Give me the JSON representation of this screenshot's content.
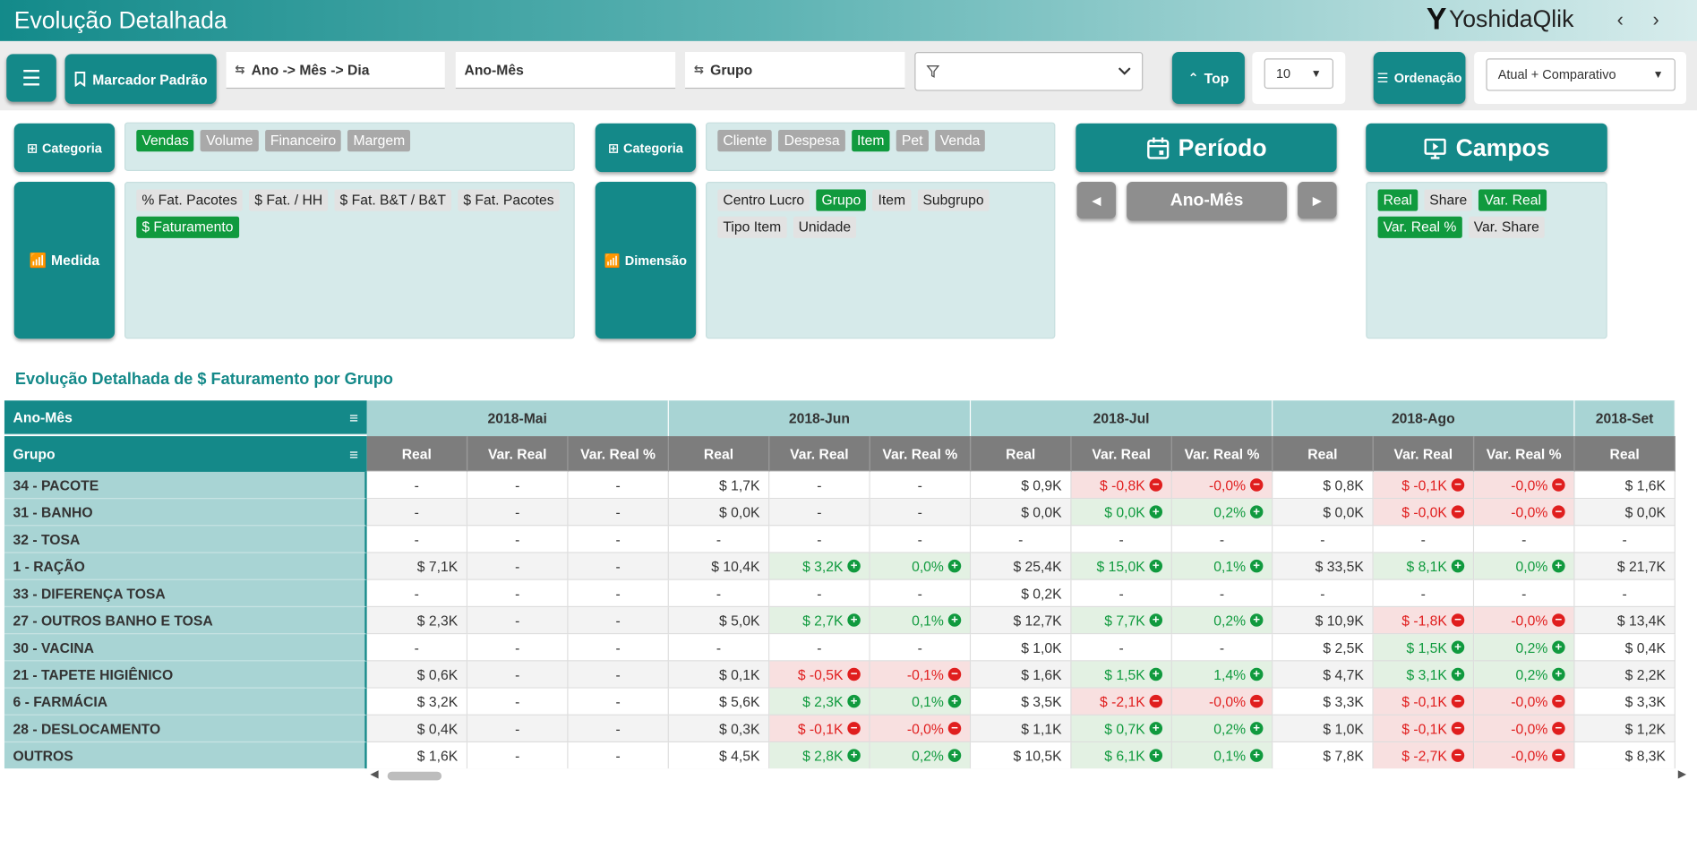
{
  "header": {
    "title": "Evolução Detalhada",
    "logo_text": "YoshidaQlik",
    "logo_letter": "Y",
    "prev_arrow": "‹",
    "next_arrow": "›"
  },
  "toolbar": {
    "menu_icon": "☰",
    "bookmark_label": "Marcador Padrão",
    "hierarchy_label": "Ano -> Mês -> Dia",
    "period_field": "Ano-Mês",
    "group_field": "Grupo",
    "filter_value": "",
    "top_label": "Top",
    "top_value": "10",
    "order_label": "Ordenação",
    "order_value": "Atual + Comparativo"
  },
  "filters": {
    "categoria_label": "Categoria",
    "medida_label": "Medida",
    "dimensao_label": "Dimensão",
    "periodo_label": "Período",
    "campos_label": "Campos",
    "period_value": "Ano-Mês",
    "categoria_left": [
      {
        "label": "Vendas",
        "state": "selected"
      },
      {
        "label": "Volume",
        "state": "excluded"
      },
      {
        "label": "Financeiro",
        "state": "excluded"
      },
      {
        "label": "Margem",
        "state": "excluded"
      }
    ],
    "medida": [
      {
        "label": "% Fat. Pacotes",
        "state": "possible"
      },
      {
        "label": "$ Fat. / HH",
        "state": "possible"
      },
      {
        "label": "$ Fat. B&T / B&T",
        "state": "possible"
      },
      {
        "label": "$ Fat. Pacotes",
        "state": "possible"
      },
      {
        "label": "$ Faturamento",
        "state": "selected"
      }
    ],
    "categoria_right": [
      {
        "label": "Cliente",
        "state": "excluded"
      },
      {
        "label": "Despesa",
        "state": "excluded"
      },
      {
        "label": "Item",
        "state": "selected"
      },
      {
        "label": "Pet",
        "state": "excluded"
      },
      {
        "label": "Venda",
        "state": "excluded"
      }
    ],
    "dimensao": [
      {
        "label": "Centro Lucro",
        "state": "possible"
      },
      {
        "label": "Grupo",
        "state": "selected"
      },
      {
        "label": "Item",
        "state": "possible"
      },
      {
        "label": "Subgrupo",
        "state": "possible"
      },
      {
        "label": "Tipo Item",
        "state": "possible"
      },
      {
        "label": "Unidade",
        "state": "possible"
      }
    ],
    "campos": [
      {
        "label": "Real",
        "state": "selected"
      },
      {
        "label": "Share",
        "state": "possible"
      },
      {
        "label": "Var. Real",
        "state": "selected"
      },
      {
        "label": "Var. Real %",
        "state": "selected"
      },
      {
        "label": "Var. Share",
        "state": "possible"
      }
    ]
  },
  "table": {
    "title": "Evolução Detalhada de $ Faturamento por Grupo",
    "dim_header_1": "Ano-Mês",
    "dim_header_2": "Grupo",
    "hamburger": "≡",
    "months": [
      "2018-Mai",
      "2018-Jun",
      "2018-Jul",
      "2018-Ago",
      "2018-Set"
    ],
    "measures": [
      "Real",
      "Var. Real",
      "Var. Real %"
    ],
    "rows": [
      {
        "group": "34 - PACOTE",
        "cells": [
          "-",
          "-",
          "-",
          "$ 1,7K",
          "-",
          "-",
          "$ 0,9K",
          "$ -0,8K",
          "-0,0%",
          "$ 0,8K",
          "$ -0,1K",
          "-0,0%",
          "$ 1,6K"
        ]
      },
      {
        "group": "31 - BANHO",
        "cells": [
          "-",
          "-",
          "-",
          "$ 0,0K",
          "-",
          "-",
          "$ 0,0K",
          "$ 0,0K",
          "0,2%",
          "$ 0,0K",
          "$ -0,0K",
          "-0,0%",
          "$ 0,0K"
        ]
      },
      {
        "group": "32 - TOSA",
        "cells": [
          "-",
          "-",
          "-",
          "-",
          "-",
          "-",
          "-",
          "-",
          "-",
          "-",
          "-",
          "-",
          "-"
        ]
      },
      {
        "group": "1 - RAÇÃO",
        "cells": [
          "$ 7,1K",
          "-",
          "-",
          "$ 10,4K",
          "$ 3,2K",
          "0,0%",
          "$ 25,4K",
          "$ 15,0K",
          "0,1%",
          "$ 33,5K",
          "$ 8,1K",
          "0,0%",
          "$ 21,7K"
        ]
      },
      {
        "group": "33 - DIFERENÇA TOSA",
        "cells": [
          "-",
          "-",
          "-",
          "-",
          "-",
          "-",
          "$ 0,2K",
          "-",
          "-",
          "-",
          "-",
          "-",
          "-"
        ]
      },
      {
        "group": "27 - OUTROS BANHO E TOSA",
        "cells": [
          "$ 2,3K",
          "-",
          "-",
          "$ 5,0K",
          "$ 2,7K",
          "0,1%",
          "$ 12,7K",
          "$ 7,7K",
          "0,2%",
          "$ 10,9K",
          "$ -1,8K",
          "-0,0%",
          "$ 13,4K"
        ]
      },
      {
        "group": "30 - VACINA",
        "cells": [
          "-",
          "-",
          "-",
          "-",
          "-",
          "-",
          "$ 1,0K",
          "-",
          "-",
          "$ 2,5K",
          "$ 1,5K",
          "0,2%",
          "$ 0,4K"
        ]
      },
      {
        "group": "21 - TAPETE HIGIÊNICO",
        "cells": [
          "$ 0,6K",
          "-",
          "-",
          "$ 0,1K",
          "$ -0,5K",
          "-0,1%",
          "$ 1,6K",
          "$ 1,5K",
          "1,4%",
          "$ 4,7K",
          "$ 3,1K",
          "0,2%",
          "$ 2,2K"
        ]
      },
      {
        "group": "6 - FARMÁCIA",
        "cells": [
          "$ 3,2K",
          "-",
          "-",
          "$ 5,6K",
          "$ 2,3K",
          "0,1%",
          "$ 3,5K",
          "$ -2,1K",
          "-0,0%",
          "$ 3,3K",
          "$ -0,1K",
          "-0,0%",
          "$ 3,3K"
        ]
      },
      {
        "group": "28 - DESLOCAMENTO",
        "cells": [
          "$ 0,4K",
          "-",
          "-",
          "$ 0,3K",
          "$ -0,1K",
          "-0,0%",
          "$ 1,1K",
          "$ 0,7K",
          "0,2%",
          "$ 1,0K",
          "$ -0,1K",
          "-0,0%",
          "$ 1,2K"
        ]
      },
      {
        "group": "OUTROS",
        "cells": [
          "$ 1,6K",
          "-",
          "-",
          "$ 4,5K",
          "$ 2,8K",
          "0,2%",
          "$ 10,5K",
          "$ 6,1K",
          "0,1%",
          "$ 7,8K",
          "$ -2,7K",
          "-0,0%",
          "$ 8,3K"
        ]
      }
    ]
  },
  "colors": {
    "teal": "#148989",
    "header_teal_light": "#a8d4d4",
    "positive_bg": "#e3f1e3",
    "positive_text": "#109a3e",
    "negative_bg": "#f8e0e0",
    "negative_text": "#e01e1e",
    "selected_chip": "#109a3e",
    "excluded_chip": "#a9a9a9"
  },
  "icons": {
    "menu": "hamburger-icon",
    "bookmark": "bookmark-icon",
    "hierarchy": "hierarchy-icon",
    "filter": "filter-icon",
    "top": "chevron-double-up-icon",
    "order": "list-icon",
    "grid": "grid-icon",
    "chart": "bar-chart-icon",
    "calendar": "calendar-icon",
    "play": "play-screen-icon",
    "plus": "plus-circle-icon",
    "minus": "minus-circle-icon"
  }
}
